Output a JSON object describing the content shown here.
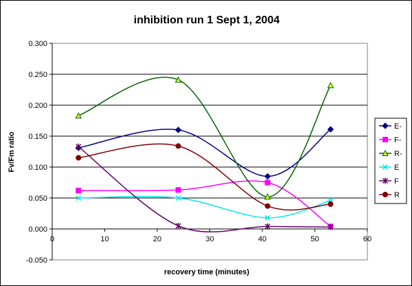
{
  "chart_data": {
    "type": "line",
    "title": "inhibition run 1 Sept 1, 2004",
    "xlabel": "recovery time (minutes)",
    "ylabel": "Fv/Fm ratio",
    "xlim": [
      0,
      60
    ],
    "ylim": [
      -0.05,
      0.3
    ],
    "xticks": [
      "0",
      "10",
      "20",
      "30",
      "40",
      "50",
      "60"
    ],
    "yticks": [
      "-0.050",
      "0.000",
      "0.050",
      "0.100",
      "0.150",
      "0.200",
      "0.250",
      "0.300"
    ],
    "grid": "horizontal",
    "smoothed": true,
    "legend_position": "right",
    "series": [
      {
        "name": "E-",
        "color": "#000080",
        "marker": "diamond",
        "x": [
          5,
          24,
          41,
          53
        ],
        "y": [
          0.131,
          0.16,
          0.085,
          0.161
        ]
      },
      {
        "name": "F-",
        "color": "#ff00ff",
        "marker": "square",
        "x": [
          5,
          24,
          41,
          53
        ],
        "y": [
          0.062,
          0.063,
          0.075,
          0.004
        ]
      },
      {
        "name": "R-",
        "color": "#006400",
        "marker": "triangle",
        "x": [
          5,
          24,
          41,
          53
        ],
        "y": [
          0.183,
          0.241,
          0.052,
          0.232
        ]
      },
      {
        "name": "E",
        "color": "#00e5ee",
        "marker": "x",
        "x": [
          5,
          24,
          41,
          53
        ],
        "y": [
          0.05,
          0.05,
          0.018,
          0.046
        ]
      },
      {
        "name": "F",
        "color": "#660066",
        "marker": "star",
        "x": [
          5,
          24,
          41,
          53
        ],
        "y": [
          0.133,
          0.005,
          0.004,
          0.003
        ]
      },
      {
        "name": "R",
        "color": "#800000",
        "marker": "circle",
        "x": [
          5,
          24,
          41,
          53
        ],
        "y": [
          0.115,
          0.134,
          0.037,
          0.04
        ]
      }
    ]
  }
}
